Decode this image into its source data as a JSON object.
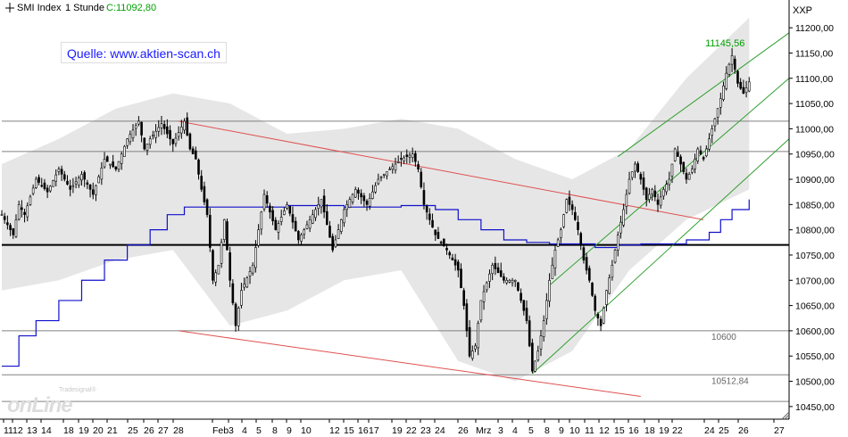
{
  "header": {
    "symbol": "SMI Index",
    "interval": "1 Stunde",
    "close_label": "C:11092,80",
    "axis_title": "XXP",
    "close_color": "#00a000"
  },
  "source_label": "Quelle: www.aktien-scan.ch",
  "watermark": {
    "top": "Tradesignal®",
    "main": "onLine"
  },
  "chart_data": {
    "type": "candlestick",
    "title": "SMI Index 1 Stunde",
    "ylim": [
      10425,
      11255
    ],
    "y_ticks": [
      10450,
      10500,
      10550,
      10600,
      10650,
      10700,
      10750,
      10800,
      10850,
      10900,
      10950,
      11000,
      11050,
      11100,
      11150,
      11200
    ],
    "y_tick_labels": [
      "10450,00",
      "10500,00",
      "10550,00",
      "10600,00",
      "10650,00",
      "10700,00",
      "10750,00",
      "10800,00",
      "10850,00",
      "10900,00",
      "10950,00",
      "11000,00",
      "11050,00",
      "11100,00",
      "11150,00",
      "11200,00"
    ],
    "x_tick_labels": [
      "11",
      "12",
      "13",
      "14",
      "18",
      "19",
      "20",
      "21",
      "25",
      "26",
      "27",
      "28",
      "Feb",
      "3",
      "4",
      "5",
      "8",
      "9",
      "10",
      "12",
      "15",
      "16",
      "17",
      "19",
      "22",
      "23",
      "24",
      "26",
      "Mrz",
      "3",
      "4",
      "5",
      "8",
      "9",
      "10",
      "11",
      "12",
      "15",
      "16",
      "18",
      "19",
      "22",
      "24",
      "25",
      "26",
      "27"
    ],
    "grid": false,
    "price_path": [
      [
        0,
        10830
      ],
      [
        2,
        10790
      ],
      [
        3,
        10850
      ],
      [
        4,
        10830
      ],
      [
        6,
        10900
      ],
      [
        8,
        10875
      ],
      [
        10,
        10920
      ],
      [
        12,
        10880
      ],
      [
        14,
        10910
      ],
      [
        16,
        10870
      ],
      [
        18,
        10940
      ],
      [
        20,
        10920
      ],
      [
        22,
        10980
      ],
      [
        24,
        11015
      ],
      [
        25,
        10960
      ],
      [
        26,
        10980
      ],
      [
        28,
        11010
      ],
      [
        30,
        10970
      ],
      [
        32,
        11015
      ],
      [
        33,
        10960
      ],
      [
        34,
        10940
      ],
      [
        35,
        10880
      ],
      [
        36,
        10830
      ],
      [
        37,
        10700
      ],
      [
        38,
        10730
      ],
      [
        39,
        10820
      ],
      [
        40,
        10700
      ],
      [
        41,
        10610
      ],
      [
        42,
        10680
      ],
      [
        44,
        10730
      ],
      [
        46,
        10870
      ],
      [
        48,
        10800
      ],
      [
        50,
        10850
      ],
      [
        52,
        10780
      ],
      [
        54,
        10820
      ],
      [
        56,
        10860
      ],
      [
        58,
        10760
      ],
      [
        60,
        10840
      ],
      [
        62,
        10880
      ],
      [
        64,
        10850
      ],
      [
        66,
        10900
      ],
      [
        68,
        10920
      ],
      [
        70,
        10940
      ],
      [
        72,
        10950
      ],
      [
        73,
        10920
      ],
      [
        74,
        10850
      ],
      [
        75,
        10820
      ],
      [
        76,
        10790
      ],
      [
        78,
        10760
      ],
      [
        80,
        10720
      ],
      [
        81,
        10650
      ],
      [
        82,
        10550
      ],
      [
        83,
        10570
      ],
      [
        84,
        10660
      ],
      [
        86,
        10730
      ],
      [
        88,
        10700
      ],
      [
        90,
        10700
      ],
      [
        92,
        10620
      ],
      [
        93,
        10520
      ],
      [
        94,
        10560
      ],
      [
        95,
        10620
      ],
      [
        96,
        10700
      ],
      [
        97,
        10760
      ],
      [
        98,
        10800
      ],
      [
        99,
        10860
      ],
      [
        100,
        10840
      ],
      [
        101,
        10800
      ],
      [
        102,
        10740
      ],
      [
        103,
        10700
      ],
      [
        104,
        10640
      ],
      [
        105,
        10610
      ],
      [
        106,
        10680
      ],
      [
        107,
        10730
      ],
      [
        108,
        10790
      ],
      [
        109,
        10840
      ],
      [
        110,
        10900
      ],
      [
        111,
        10930
      ],
      [
        112,
        10900
      ],
      [
        113,
        10860
      ],
      [
        114,
        10880
      ],
      [
        115,
        10850
      ],
      [
        116,
        10880
      ],
      [
        117,
        10900
      ],
      [
        118,
        10960
      ],
      [
        119,
        10930
      ],
      [
        120,
        10900
      ],
      [
        121,
        10920
      ],
      [
        122,
        10960
      ],
      [
        123,
        10940
      ],
      [
        124,
        10980
      ],
      [
        125,
        11020
      ],
      [
        126,
        11060
      ],
      [
        127,
        11110
      ],
      [
        128,
        11145
      ],
      [
        129,
        11090
      ],
      [
        130,
        11070
      ],
      [
        131,
        11092.8
      ]
    ],
    "reference_lines": [
      {
        "y": 10770,
        "color": "#000000",
        "label": ""
      },
      {
        "y": 11015,
        "color": "#808080",
        "label": ""
      },
      {
        "y": 10955,
        "color": "#808080",
        "label": ""
      },
      {
        "y": 10600,
        "color": "#808080",
        "label": "10600"
      },
      {
        "y": 10512.84,
        "color": "#808080",
        "label": "10512,84"
      },
      {
        "y": 10460,
        "color": "#808080",
        "label": ""
      }
    ],
    "annotations": [
      {
        "text": "11145,56",
        "x": 128,
        "y": 11145.56,
        "color": "#00a000"
      }
    ],
    "moving_average": {
      "name": "",
      "color": "#1111cc",
      "points": [
        [
          0,
          10530
        ],
        [
          3,
          10590
        ],
        [
          6,
          10620
        ],
        [
          10,
          10660
        ],
        [
          14,
          10700
        ],
        [
          18,
          10740
        ],
        [
          22,
          10770
        ],
        [
          26,
          10800
        ],
        [
          29,
          10830
        ],
        [
          32,
          10845
        ],
        [
          40,
          10845
        ],
        [
          50,
          10848
        ],
        [
          60,
          10845
        ],
        [
          70,
          10848
        ],
        [
          76,
          10840
        ],
        [
          80,
          10820
        ],
        [
          84,
          10800
        ],
        [
          88,
          10780
        ],
        [
          92,
          10775
        ],
        [
          96,
          10772
        ],
        [
          100,
          10772
        ],
        [
          104,
          10765
        ],
        [
          108,
          10770
        ],
        [
          112,
          10772
        ],
        [
          116,
          10772
        ],
        [
          120,
          10780
        ],
        [
          124,
          10795
        ],
        [
          126,
          10820
        ],
        [
          128,
          10840
        ],
        [
          131,
          10860
        ]
      ]
    },
    "bollinger_band": {
      "color": "#e6e6e6",
      "upper": [
        [
          0,
          10930
        ],
        [
          10,
          10980
        ],
        [
          20,
          11040
        ],
        [
          30,
          11070
        ],
        [
          40,
          11050
        ],
        [
          50,
          10990
        ],
        [
          60,
          11000
        ],
        [
          70,
          11020
        ],
        [
          80,
          11000
        ],
        [
          90,
          10940
        ],
        [
          100,
          10900
        ],
        [
          110,
          10960
        ],
        [
          120,
          11100
        ],
        [
          131,
          11220
        ]
      ],
      "lower": [
        [
          0,
          10680
        ],
        [
          10,
          10700
        ],
        [
          20,
          10740
        ],
        [
          30,
          10760
        ],
        [
          40,
          10610
        ],
        [
          50,
          10640
        ],
        [
          60,
          10700
        ],
        [
          70,
          10720
        ],
        [
          80,
          10540
        ],
        [
          90,
          10500
        ],
        [
          100,
          10560
        ],
        [
          110,
          10720
        ],
        [
          120,
          10820
        ],
        [
          131,
          10880
        ]
      ]
    },
    "trend_channels": [
      {
        "color": "#e05050",
        "lines": [
          {
            "from": [
              31,
              11015
            ],
            "to": [
              123,
              10820
            ]
          },
          {
            "from": [
              31,
              10600
            ],
            "to": [
              112,
              10470
            ]
          }
        ]
      },
      {
        "color": "#30a030",
        "lines": [
          {
            "from": [
              108,
              10945
            ],
            "to": [
              138,
              11190
            ]
          },
          {
            "from": [
              96,
              10690
            ],
            "to": [
              138,
              11100
            ]
          },
          {
            "from": [
              93,
              10515
            ],
            "to": [
              138,
              10980
            ]
          }
        ]
      }
    ]
  }
}
